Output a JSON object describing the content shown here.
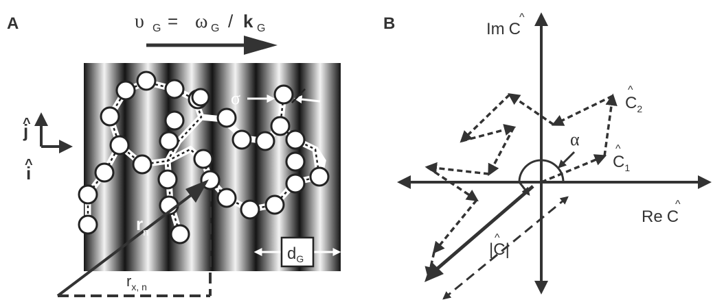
{
  "panel_a": {
    "label": "A",
    "velocity_eq": {
      "v": "υ",
      "sub_g": "G",
      "eq": "=",
      "omega": "ω",
      "slash": "/",
      "k": "k"
    },
    "sigma": "σ",
    "j_hat": "j",
    "i_hat": "i",
    "r_n": {
      "base": "r",
      "sub": "n"
    },
    "r_xn": {
      "base": "r",
      "sub": "x, n"
    },
    "d_g": {
      "base": "d",
      "sub": "G"
    }
  },
  "panel_b": {
    "label": "B",
    "im_axis": {
      "prefix": "Im",
      "c": "C"
    },
    "re_axis": {
      "prefix": "Re",
      "c": "C"
    },
    "c1": {
      "base": "C",
      "sub": "1"
    },
    "c2": {
      "base": "C",
      "sub": "2"
    },
    "alpha": "α",
    "magnitude": "|C|"
  },
  "colors": {
    "ink": "#333333",
    "bead_fill": "#ffffff",
    "stripe_dark": "#111111",
    "stripe_light": "#f4f4f4"
  }
}
